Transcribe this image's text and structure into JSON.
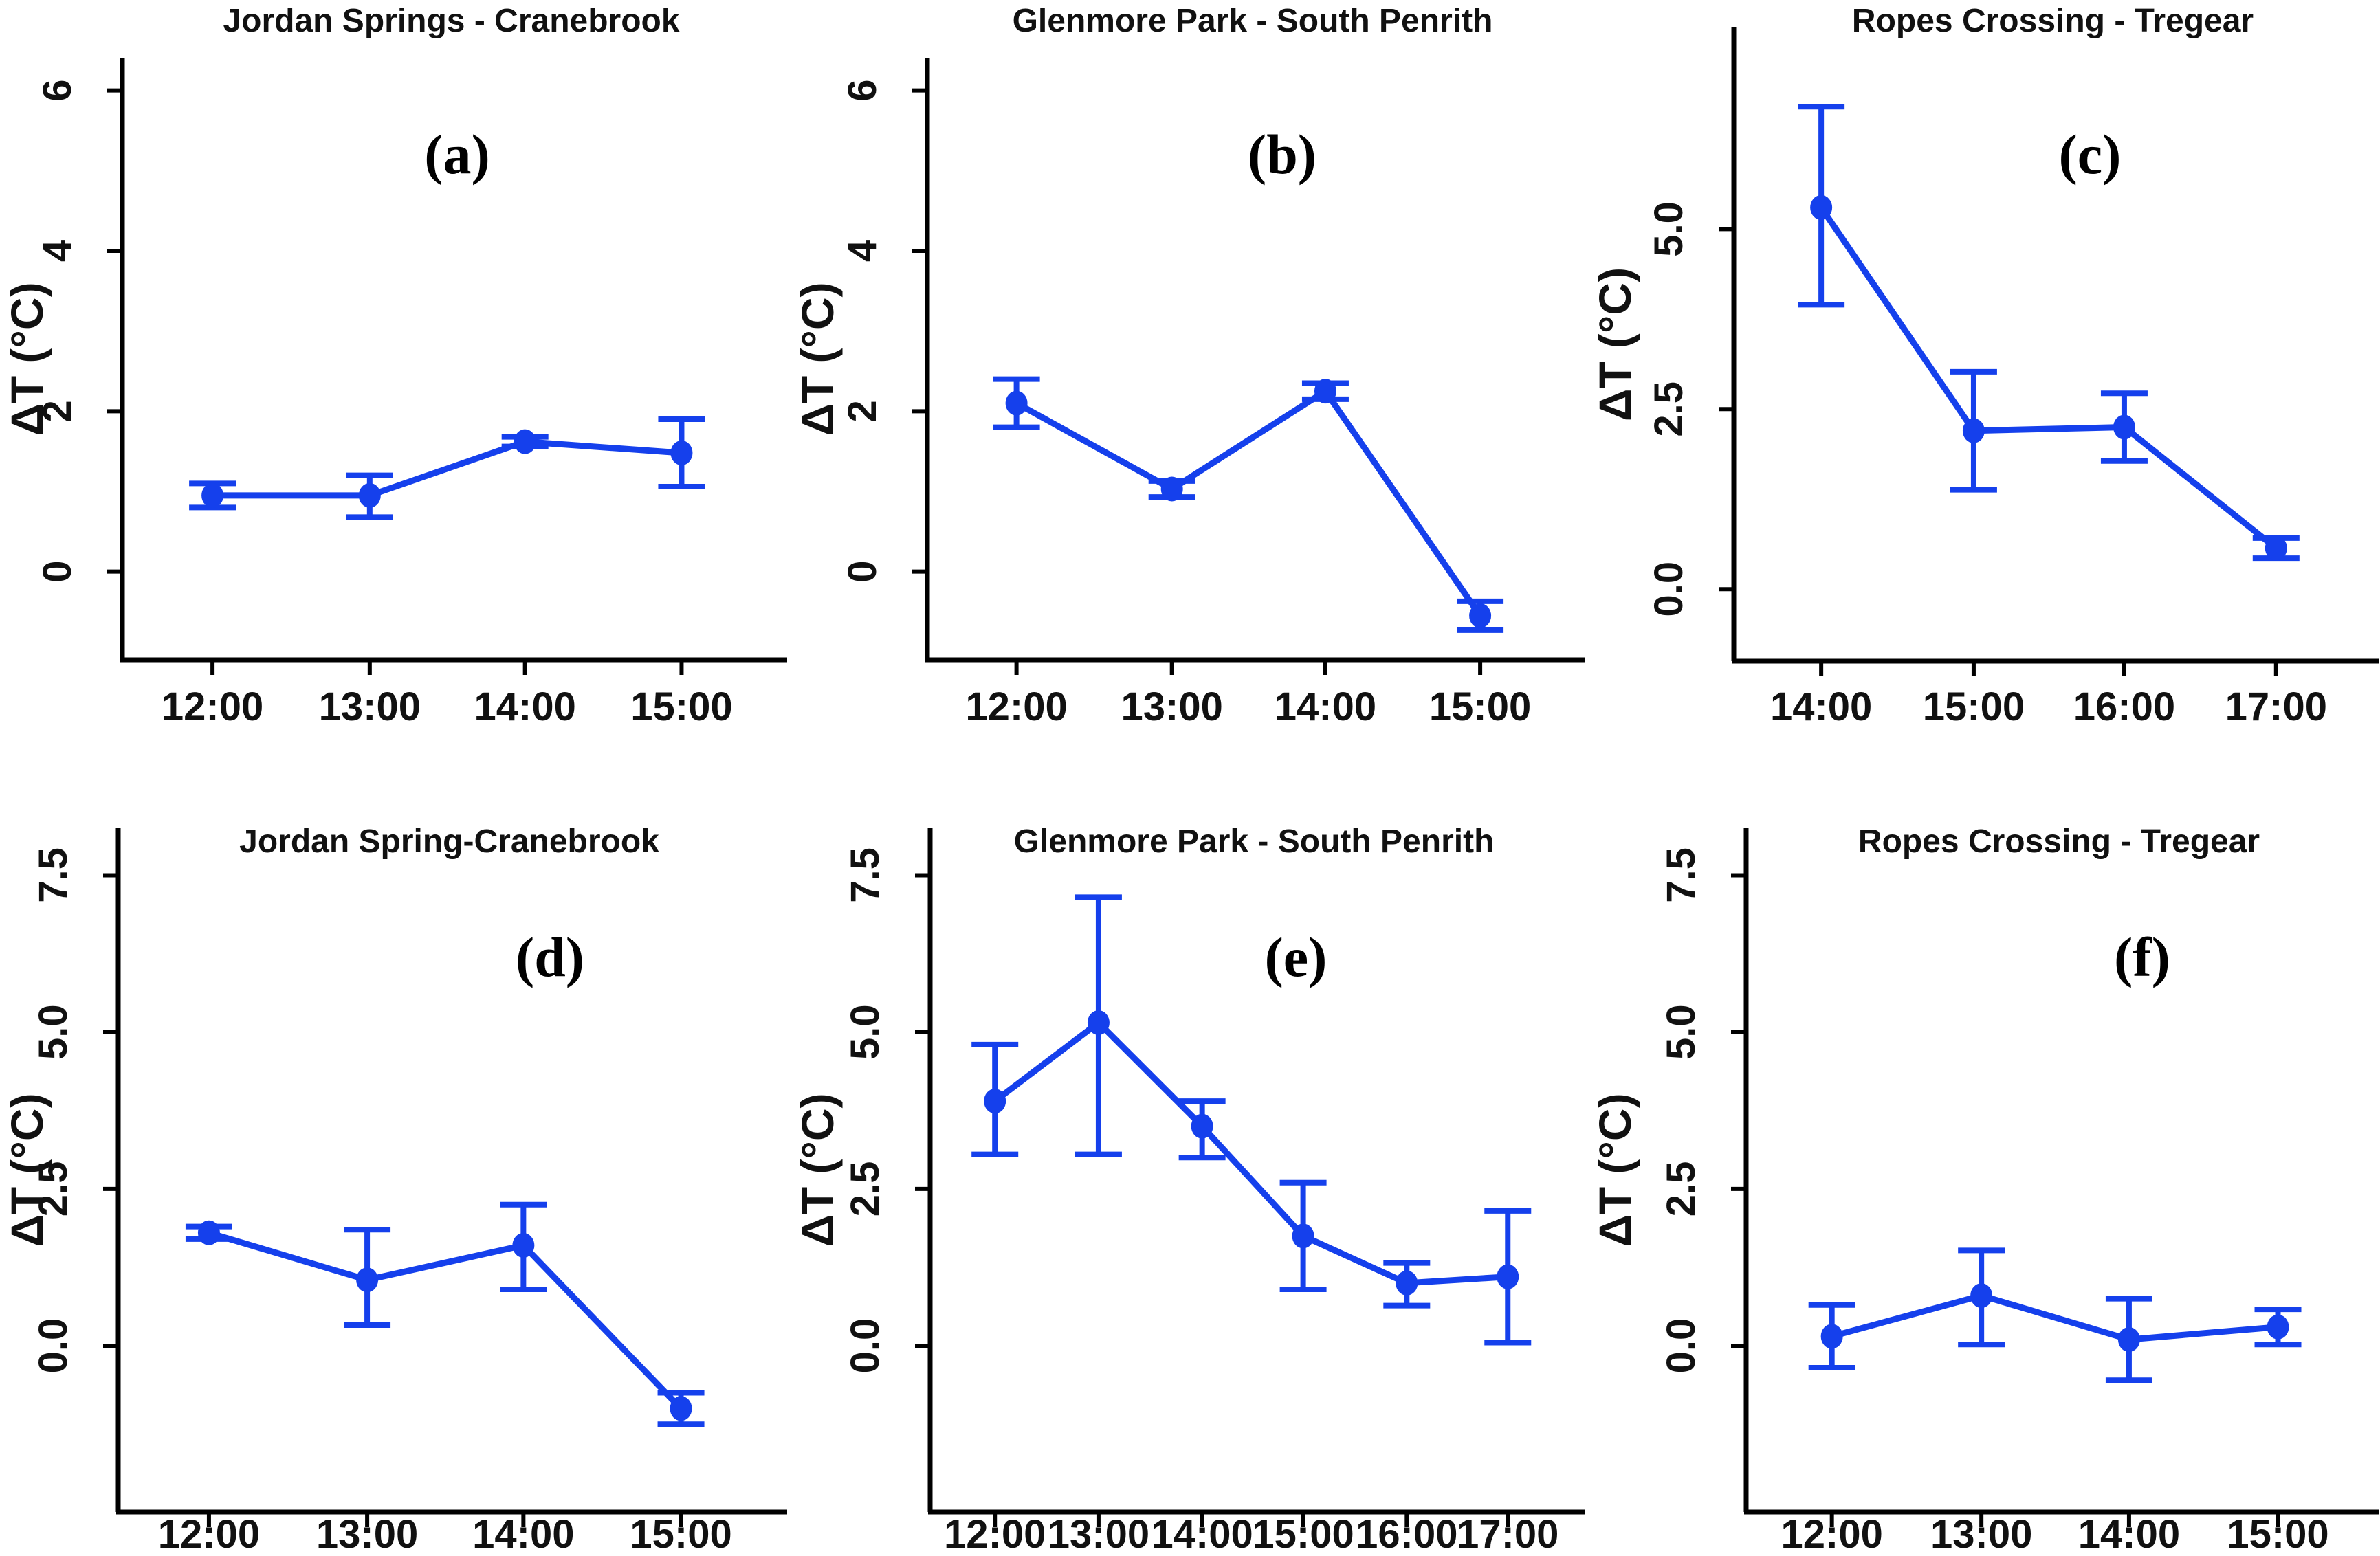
{
  "figure": {
    "background": "#ffffff",
    "line_color": "#1540ec",
    "axis_color": "#000000",
    "text_color": "#111111"
  },
  "chart_data": [
    {
      "type": "line",
      "panel": "a",
      "letter": "(a)",
      "title": "Jordan Springs - Cranebrook",
      "xlabel": "",
      "ylabel": "ΔT (°C)",
      "categories": [
        "12:00",
        "13:00",
        "14:00",
        "15:00"
      ],
      "series": [
        {
          "name": "delta-T",
          "values": [
            0.95,
            0.95,
            1.62,
            1.48
          ],
          "err_lo": [
            0.15,
            0.27,
            0.06,
            0.42
          ],
          "err_hi": [
            0.15,
            0.25,
            0.06,
            0.42
          ]
        }
      ],
      "yticks": [
        0,
        2,
        4,
        6
      ],
      "ytick_labels": [
        "0",
        "2",
        "4",
        "6"
      ],
      "ylim": [
        -1.1,
        6.4
      ],
      "error_bars": true,
      "grid": false,
      "legend": "none"
    },
    {
      "type": "line",
      "panel": "b",
      "letter": "(b)",
      "title": "Glenmore Park - South Penrith",
      "xlabel": "",
      "ylabel": "ΔT (°C)",
      "categories": [
        "12:00",
        "13:00",
        "14:00",
        "15:00"
      ],
      "series": [
        {
          "name": "delta-T",
          "values": [
            2.1,
            1.03,
            2.25,
            -0.55
          ],
          "err_lo": [
            0.3,
            0.1,
            0.1,
            0.18
          ],
          "err_hi": [
            0.3,
            0.1,
            0.1,
            0.18
          ]
        }
      ],
      "yticks": [
        0,
        2,
        4,
        6
      ],
      "ytick_labels": [
        "0",
        "2",
        "4",
        "6"
      ],
      "ylim": [
        -1.1,
        6.4
      ],
      "error_bars": true,
      "grid": false,
      "legend": "none"
    },
    {
      "type": "line",
      "panel": "c",
      "letter": "(c)",
      "title": "Ropes Crossing - Tregear",
      "xlabel": "",
      "ylabel": "ΔT (°C)",
      "categories": [
        "14:00",
        "15:00",
        "16:00",
        "17:00"
      ],
      "series": [
        {
          "name": "delta-T",
          "values": [
            5.3,
            2.2,
            2.25,
            0.57
          ],
          "err_lo": [
            1.35,
            0.82,
            0.47,
            0.14
          ],
          "err_hi": [
            1.4,
            0.82,
            0.47,
            0.14
          ]
        }
      ],
      "yticks": [
        0,
        2.5,
        5
      ],
      "ytick_labels": [
        "0.0",
        "2.5",
        "5.0"
      ],
      "ylim": [
        -1.0,
        7.8
      ],
      "error_bars": true,
      "grid": false,
      "legend": "none"
    },
    {
      "type": "line",
      "panel": "d",
      "letter": "(d)",
      "title": "Jordan Spring-Cranebrook",
      "xlabel": "",
      "ylabel": "ΔT (°C)",
      "categories": [
        "12:00",
        "13:00",
        "14:00",
        "15:00"
      ],
      "series": [
        {
          "name": "delta-T",
          "values": [
            1.8,
            1.05,
            1.6,
            -1.0
          ],
          "err_lo": [
            0.1,
            0.72,
            0.7,
            0.25
          ],
          "err_hi": [
            0.1,
            0.8,
            0.65,
            0.25
          ]
        }
      ],
      "yticks": [
        0,
        2.5,
        5,
        7.5
      ],
      "ytick_labels": [
        "0.0",
        "2.5",
        "5.0",
        "7.5"
      ],
      "ylim": [
        -2.65,
        8.25
      ],
      "error_bars": true,
      "grid": false,
      "legend": "none"
    },
    {
      "type": "line",
      "panel": "e",
      "letter": "(e)",
      "title": "Glenmore Park - South Penrith",
      "xlabel": "",
      "ylabel": "ΔT (°C)",
      "categories": [
        "12:00",
        "13:00",
        "14:00",
        "15:00",
        "16:00",
        "17:00"
      ],
      "series": [
        {
          "name": "delta-T",
          "values": [
            3.9,
            5.15,
            3.5,
            1.75,
            1.0,
            1.1
          ],
          "err_lo": [
            0.85,
            2.1,
            0.5,
            0.85,
            0.36,
            1.05
          ],
          "err_hi": [
            0.9,
            2.0,
            0.4,
            0.85,
            0.32,
            1.05
          ]
        }
      ],
      "yticks": [
        0,
        2.5,
        5,
        7.5
      ],
      "ytick_labels": [
        "0.0",
        "2.5",
        "5.0",
        "7.5"
      ],
      "ylim": [
        -2.65,
        8.25
      ],
      "error_bars": true,
      "grid": false,
      "legend": "none"
    },
    {
      "type": "line",
      "panel": "f",
      "letter": "(f)",
      "title": "Ropes Crossing - Tregear",
      "xlabel": "",
      "ylabel": "ΔT (°C)",
      "categories": [
        "12:00",
        "13:00",
        "14:00",
        "15:00"
      ],
      "series": [
        {
          "name": "delta-T",
          "values": [
            0.15,
            0.8,
            0.1,
            0.3
          ],
          "err_lo": [
            0.5,
            0.78,
            0.65,
            0.28
          ],
          "err_hi": [
            0.5,
            0.72,
            0.65,
            0.28
          ]
        }
      ],
      "yticks": [
        0,
        2.5,
        5,
        7.5
      ],
      "ytick_labels": [
        "0.0",
        "2.5",
        "5.0",
        "7.5"
      ],
      "ylim": [
        -2.65,
        8.25
      ],
      "error_bars": true,
      "grid": false,
      "legend": "none"
    }
  ]
}
